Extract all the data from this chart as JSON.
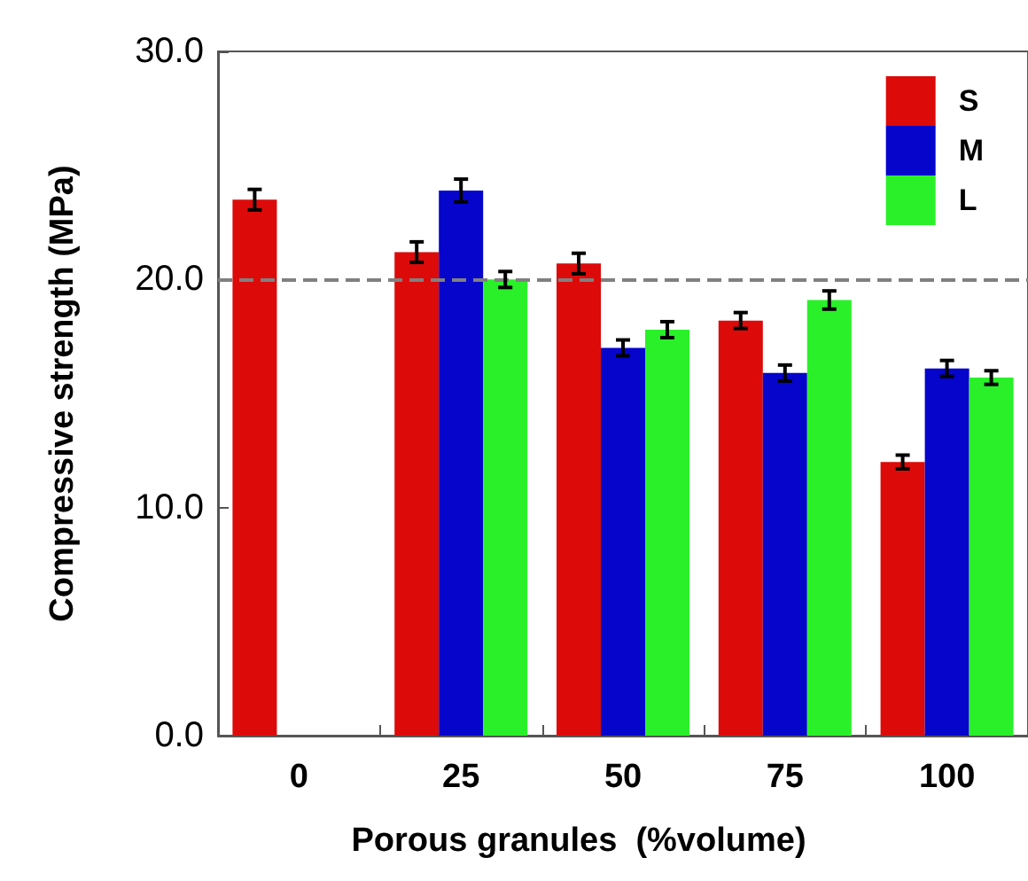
{
  "chart_data": {
    "type": "bar",
    "xlabel": "Porous granules  (%volume)",
    "ylabel": "Compressive strength (MPa)",
    "categories": [
      "0",
      "25",
      "50",
      "75",
      "100"
    ],
    "series": [
      {
        "name": "S",
        "color": "#dd0a0a",
        "values": [
          23.5,
          21.2,
          20.7,
          18.2,
          12.0
        ],
        "errors": [
          0.45,
          0.45,
          0.45,
          0.35,
          0.3
        ]
      },
      {
        "name": "M",
        "color": "#0505cc",
        "values": [
          0,
          23.9,
          17.0,
          15.9,
          16.1
        ],
        "errors": [
          null,
          0.5,
          0.35,
          0.35,
          0.35
        ]
      },
      {
        "name": "L",
        "color": "#2af02a",
        "values": [
          0,
          20.0,
          17.8,
          19.1,
          15.7
        ],
        "errors": [
          null,
          0.35,
          0.35,
          0.4,
          0.3
        ]
      }
    ],
    "ylim": [
      0,
      30
    ],
    "yticks": [
      {
        "value": 0,
        "label": "0.0"
      },
      {
        "value": 10,
        "label": "10.0"
      },
      {
        "value": 20,
        "label": "20.0"
      },
      {
        "value": 30,
        "label": "30.0"
      }
    ],
    "ref_lines": [
      {
        "axis": "y",
        "value": 20,
        "color": "#808080",
        "line_style": "dashed"
      }
    ],
    "legend": "top right",
    "grid": false
  }
}
